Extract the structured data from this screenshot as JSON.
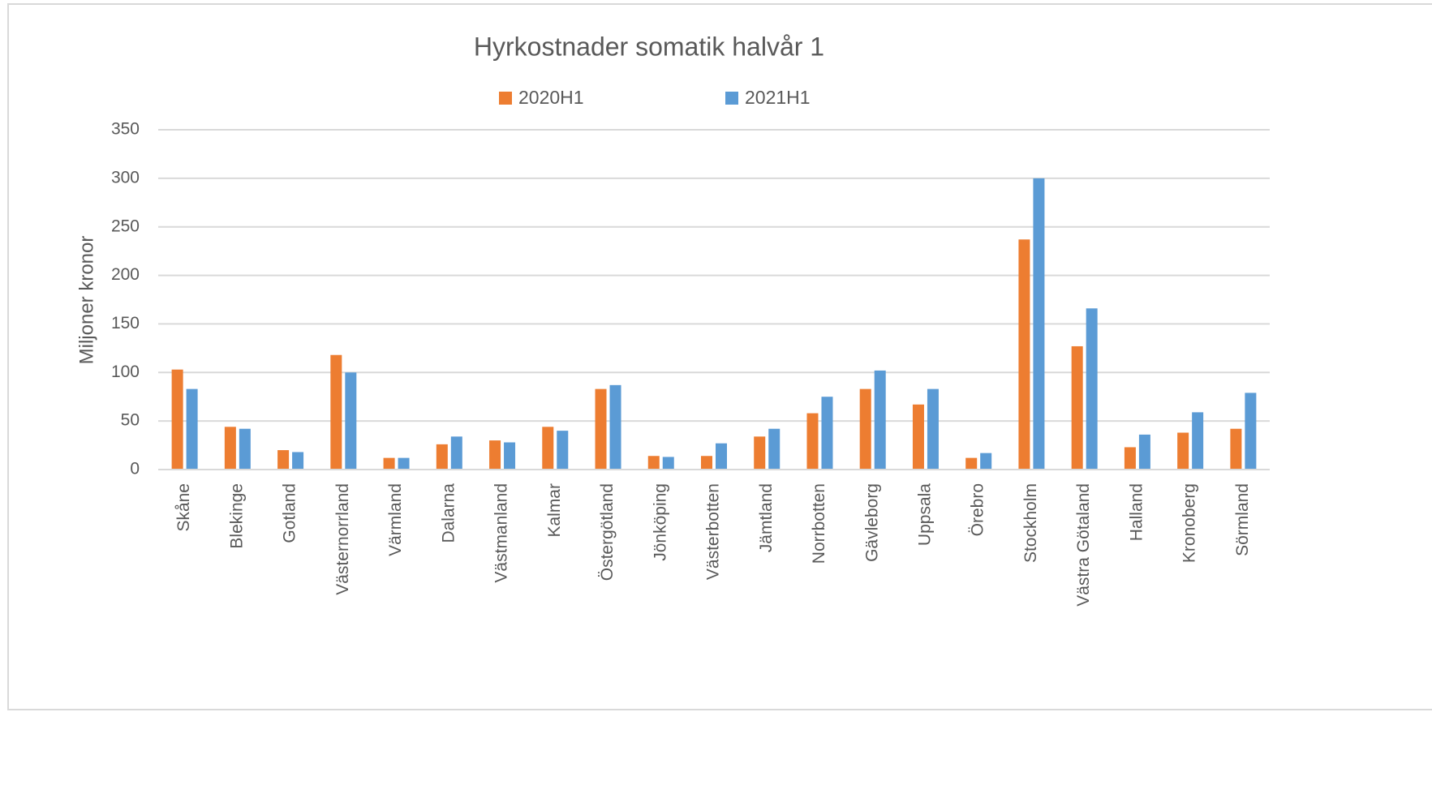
{
  "chart_data": {
    "type": "bar",
    "title": "Hyrkostnader somatik halvår 1",
    "y_label": "Miljoner kronor",
    "categories": [
      "Skåne",
      "Blekinge",
      "Gotland",
      "Västernorrland",
      "Värmland",
      "Dalarna",
      "Västmanland",
      "Kalmar",
      "Östergötland",
      "Jönköping",
      "Västerbotten",
      "Jämtland",
      "Norrbotten",
      "Gävleborg",
      "Uppsala",
      "Örebro",
      "Stockholm",
      "Västra Götaland",
      "Halland",
      "Kronoberg",
      "Sörmland"
    ],
    "series": [
      {
        "name": "2020H1",
        "color": "#ed7d31",
        "values": [
          103,
          44,
          20,
          118,
          12,
          26,
          30,
          44,
          83,
          14,
          14,
          34,
          58,
          83,
          67,
          12,
          237,
          127,
          23,
          38,
          42
        ]
      },
      {
        "name": "2021H1",
        "color": "#5b9bd5",
        "values": [
          83,
          42,
          18,
          100,
          12,
          34,
          28,
          40,
          87,
          13,
          27,
          42,
          75,
          102,
          83,
          17,
          300,
          166,
          36,
          59,
          79
        ]
      }
    ],
    "ylim": [
      0,
      350
    ],
    "yticks": [
      0,
      50,
      100,
      150,
      200,
      250,
      300,
      350
    ],
    "grid": true,
    "legend": "top"
  }
}
